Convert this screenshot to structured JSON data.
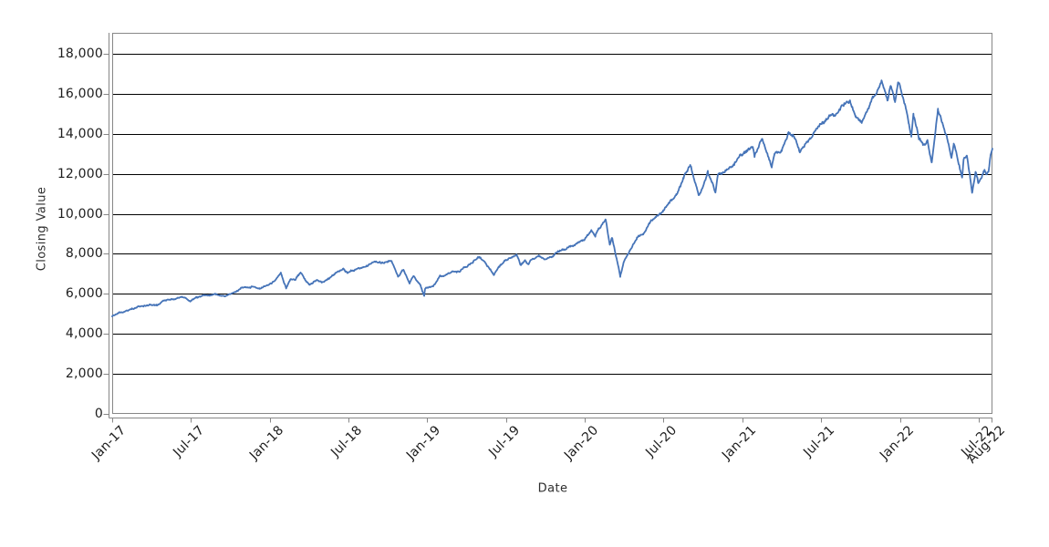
{
  "chart": {
    "y_axis": {
      "title": "Closing Value"
    },
    "x_axis": {
      "title": "Date"
    }
  },
  "colors": {
    "background": "#ffffff",
    "gridline": "#000000",
    "axis": "#878787",
    "plot_border": "#878787",
    "tick_text": "#1d1d1d",
    "axis_title_text": "#2e2e2e",
    "series_line": "#4674b8"
  },
  "chart_data": {
    "type": "line",
    "title": "",
    "xlabel": "Date",
    "ylabel": "Closing Value",
    "legend": "none",
    "grid": "horizontal, black, every 2000",
    "x_unit": "months since Jan-2017",
    "x_range": [
      0,
      67.05
    ],
    "ylim": [
      0,
      18000
    ],
    "y_ticks": [
      0,
      2000,
      4000,
      6000,
      8000,
      10000,
      12000,
      14000,
      16000,
      18000
    ],
    "x_ticks": [
      {
        "label": "Jan-17",
        "m": 0
      },
      {
        "label": "Jul-17",
        "m": 6
      },
      {
        "label": "Jan-18",
        "m": 12
      },
      {
        "label": "Jul-18",
        "m": 18
      },
      {
        "label": "Jan-19",
        "m": 24
      },
      {
        "label": "Jul-19",
        "m": 30
      },
      {
        "label": "Jan-20",
        "m": 36
      },
      {
        "label": "Jul-20",
        "m": 42
      },
      {
        "label": "Jan-21",
        "m": 48
      },
      {
        "label": "Jul-21",
        "m": 54
      },
      {
        "label": "Jan-22",
        "m": 60
      },
      {
        "label": "Jul-22",
        "m": 66
      },
      {
        "label": "Aug-22",
        "m": 67
      }
    ],
    "series": [
      {
        "name": "Closing Value",
        "color": "#4674b8",
        "keypoints": [
          [
            0,
            4870
          ],
          [
            0.5,
            5050
          ],
          [
            0.95,
            5109
          ],
          [
            1.5,
            5240
          ],
          [
            1.9,
            5351
          ],
          [
            2.4,
            5400
          ],
          [
            2.9,
            5437
          ],
          [
            3.4,
            5430
          ],
          [
            3.9,
            5647
          ],
          [
            4.45,
            5700
          ],
          [
            4.9,
            5789
          ],
          [
            5.3,
            5885
          ],
          [
            5.6,
            5760
          ],
          [
            5.95,
            5647
          ],
          [
            6.45,
            5790
          ],
          [
            6.9,
            5880
          ],
          [
            7.4,
            5930
          ],
          [
            7.9,
            5988
          ],
          [
            8.55,
            5870
          ],
          [
            8.95,
            5969
          ],
          [
            9.5,
            6100
          ],
          [
            9.9,
            6300
          ],
          [
            10.6,
            6364
          ],
          [
            11.2,
            6255
          ],
          [
            11.95,
            6397
          ],
          [
            12.4,
            6660
          ],
          [
            12.85,
            7022
          ],
          [
            13.25,
            6307
          ],
          [
            13.6,
            6760
          ],
          [
            13.95,
            6706
          ],
          [
            14.35,
            7106
          ],
          [
            14.75,
            6650
          ],
          [
            15.05,
            6420
          ],
          [
            15.55,
            6680
          ],
          [
            15.95,
            6605
          ],
          [
            16.45,
            6790
          ],
          [
            16.9,
            6970
          ],
          [
            17.6,
            7260
          ],
          [
            17.95,
            7041
          ],
          [
            18.5,
            7190
          ],
          [
            18.95,
            7275
          ],
          [
            19.45,
            7460
          ],
          [
            19.93,
            7691
          ],
          [
            20.5,
            7560
          ],
          [
            20.97,
            7627
          ],
          [
            21.3,
            7660
          ],
          [
            21.77,
            6867
          ],
          [
            22.2,
            7230
          ],
          [
            22.65,
            6542
          ],
          [
            22.97,
            6899
          ],
          [
            23.45,
            6450
          ],
          [
            23.77,
            5895
          ],
          [
            23.83,
            6262
          ],
          [
            24.45,
            6420
          ],
          [
            24.97,
            6869
          ],
          [
            25.45,
            6950
          ],
          [
            25.9,
            7101
          ],
          [
            26.45,
            7120
          ],
          [
            26.9,
            7378
          ],
          [
            27.45,
            7600
          ],
          [
            27.97,
            7846
          ],
          [
            28.35,
            7620
          ],
          [
            29.07,
            6960
          ],
          [
            29.5,
            7350
          ],
          [
            29.9,
            7671
          ],
          [
            30.8,
            7964
          ],
          [
            31.13,
            7420
          ],
          [
            31.45,
            7670
          ],
          [
            31.7,
            7470
          ],
          [
            31.95,
            7691
          ],
          [
            32.5,
            7920
          ],
          [
            32.95,
            7749
          ],
          [
            33.45,
            7850
          ],
          [
            33.9,
            8083
          ],
          [
            34.45,
            8250
          ],
          [
            34.9,
            8403
          ],
          [
            35.45,
            8530
          ],
          [
            35.97,
            8733
          ],
          [
            36.5,
            9173
          ],
          [
            36.8,
            8950
          ],
          [
            37.1,
            9250
          ],
          [
            37.6,
            9718
          ],
          [
            37.9,
            8461
          ],
          [
            38.07,
            8850
          ],
          [
            38.45,
            7700
          ],
          [
            38.7,
            6900
          ],
          [
            39,
            7620
          ],
          [
            39.45,
            8200
          ],
          [
            39.97,
            8834
          ],
          [
            40.45,
            9020
          ],
          [
            40.93,
            9555
          ],
          [
            41.45,
            9850
          ],
          [
            41.97,
            10156
          ],
          [
            42.45,
            10550
          ],
          [
            42.97,
            10905
          ],
          [
            43.5,
            11700
          ],
          [
            44.03,
            12420
          ],
          [
            44.67,
            10936
          ],
          [
            45,
            11400
          ],
          [
            45.37,
            12088
          ],
          [
            45.95,
            11052
          ],
          [
            46.13,
            11890
          ],
          [
            46.97,
            12268
          ],
          [
            47.45,
            12600
          ],
          [
            47.97,
            12888
          ],
          [
            48.3,
            13100
          ],
          [
            48.8,
            13366
          ],
          [
            48.93,
            12925
          ],
          [
            49.5,
            13807
          ],
          [
            50.23,
            12299
          ],
          [
            50.45,
            13082
          ],
          [
            50.97,
            13092
          ],
          [
            51.5,
            14041
          ],
          [
            51.97,
            13860
          ],
          [
            52.37,
            13031
          ],
          [
            52.97,
            13686
          ],
          [
            53.45,
            14050
          ],
          [
            53.97,
            14554
          ],
          [
            54.45,
            14700
          ],
          [
            54.94,
            14960
          ],
          [
            55.45,
            15300
          ],
          [
            55.97,
            15582
          ],
          [
            56.2,
            15676
          ],
          [
            56.63,
            14930
          ],
          [
            57.1,
            14568
          ],
          [
            57.63,
            15330
          ],
          [
            57.93,
            15850
          ],
          [
            58.6,
            16573
          ],
          [
            59.07,
            15712
          ],
          [
            59.3,
            16332
          ],
          [
            59.63,
            15629
          ],
          [
            59.87,
            16567
          ],
          [
            60.05,
            16320
          ],
          [
            60.45,
            15300
          ],
          [
            60.7,
            14440
          ],
          [
            60.87,
            13962
          ],
          [
            61.03,
            15056
          ],
          [
            61.45,
            13790
          ],
          [
            61.77,
            13473
          ],
          [
            62.1,
            13700
          ],
          [
            62.42,
            12555
          ],
          [
            62.9,
            15239
          ],
          [
            63.3,
            14460
          ],
          [
            63.6,
            13800
          ],
          [
            63.93,
            12855
          ],
          [
            64.1,
            13536
          ],
          [
            64.74,
            11769
          ],
          [
            64.85,
            12681
          ],
          [
            65.1,
            12890
          ],
          [
            65.35,
            11832
          ],
          [
            65.5,
            11037
          ],
          [
            65.77,
            12105
          ],
          [
            65.97,
            11504
          ],
          [
            66.2,
            11800
          ],
          [
            66.45,
            12200
          ],
          [
            66.6,
            11970
          ],
          [
            66.75,
            12086
          ],
          [
            66.9,
            12948
          ],
          [
            67.05,
            13390
          ]
        ]
      }
    ],
    "noise": {
      "seed": 42,
      "fraction": 0.006,
      "max_fraction": 0.012,
      "samples_per_month": 21
    }
  }
}
